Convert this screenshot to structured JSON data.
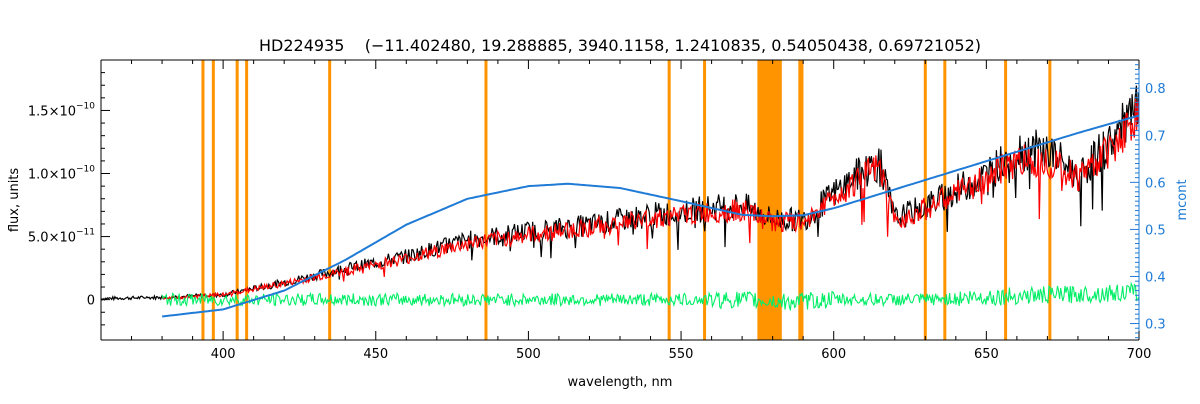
{
  "chart_data": {
    "type": "line",
    "title": "HD224935    (−11.402480, 19.288885, 3940.1158, 1.2410835, 0.54050438, 0.69721052)",
    "xlabel": "wavelength, nm",
    "ylabel": "flux, units",
    "y2label": "mcont",
    "xlim": [
      360,
      700
    ],
    "ylim": [
      -3.2e-11,
      1.9e-10
    ],
    "y2lim": [
      0.265,
      0.86
    ],
    "x_ticks": [
      400,
      450,
      500,
      550,
      600,
      650,
      700
    ],
    "x_tick_labels": [
      "400",
      "450",
      "500",
      "550",
      "600",
      "650",
      "700"
    ],
    "y_ticks": [
      0,
      5e-11,
      1e-10,
      1.5e-10
    ],
    "y_tick_labels": [
      {
        "mant": "0",
        "exp": ""
      },
      {
        "mant": "5.0×10",
        "exp": "−11"
      },
      {
        "mant": "1.0×10",
        "exp": "−10"
      },
      {
        "mant": "1.5×10",
        "exp": "−10"
      }
    ],
    "y2_ticks": [
      0.3,
      0.4,
      0.5,
      0.6,
      0.7,
      0.8
    ],
    "y2_tick_labels": [
      "0.3",
      "0.4",
      "0.5",
      "0.6",
      "0.7",
      "0.8"
    ],
    "masked_lines_nm": [
      393.4,
      396.8,
      404.6,
      407.7,
      434.9,
      486.1,
      546.1,
      557.7,
      588.9,
      589.6,
      630.0,
      636.4,
      656.3,
      670.8
    ],
    "masked_band_nm": [
      575,
      583
    ],
    "series": [
      {
        "key": "observed",
        "color": "#000000",
        "x": [
          360,
          380,
          400,
          420,
          440,
          460,
          480,
          500,
          520,
          540,
          560,
          570,
          580,
          590,
          600,
          610,
          615,
          620,
          630,
          640,
          650,
          660,
          670,
          680,
          690,
          700
        ],
        "y": [
          1e-12,
          2e-12,
          4e-12,
          1.4e-11,
          2.5e-11,
          3.5e-11,
          4.8e-11,
          5.5e-11,
          6e-11,
          6.8e-11,
          7.4e-11,
          7.6e-11,
          6.5e-11,
          6.4e-11,
          8.5e-11,
          1.05e-10,
          1.1e-10,
          6.5e-11,
          7.5e-11,
          8.8e-11,
          1e-10,
          1.2e-10,
          1.2e-10,
          1e-10,
          1.25e-10,
          1.55e-10
        ]
      },
      {
        "key": "model",
        "color": "#ff0000",
        "x": [
          380,
          400,
          420,
          440,
          460,
          480,
          500,
          520,
          540,
          560,
          570,
          580,
          590,
          600,
          610,
          615,
          620,
          630,
          640,
          650,
          660,
          670,
          680,
          690,
          700
        ],
        "y": [
          1e-12,
          4e-12,
          1.3e-11,
          2.3e-11,
          3.3e-11,
          4.5e-11,
          5.2e-11,
          5.8e-11,
          6.5e-11,
          7e-11,
          7.2e-11,
          6.2e-11,
          6.2e-11,
          8.2e-11,
          1e-10,
          1.05e-10,
          6.3e-11,
          7.3e-11,
          8.5e-11,
          9.7e-11,
          1.12e-10,
          1.12e-10,
          9.8e-11,
          1.2e-10,
          1.48e-10
        ]
      },
      {
        "key": "residual",
        "color": "#00ee66",
        "x": [
          380,
          420,
          460,
          500,
          540,
          570,
          585,
          600,
          630,
          660,
          690,
          700
        ],
        "y": [
          0,
          0,
          0,
          0,
          0,
          0,
          -2e-12,
          0,
          0,
          3e-12,
          5e-12,
          6e-12
        ]
      },
      {
        "key": "continuum",
        "axis": "right",
        "color": "#1f7bd6",
        "x": [
          380,
          400,
          420,
          440,
          460,
          480,
          500,
          513,
          530,
          550,
          570,
          580,
          590,
          600,
          620,
          640,
          660,
          680,
          700
        ],
        "y": [
          0.315,
          0.33,
          0.37,
          0.435,
          0.51,
          0.565,
          0.592,
          0.597,
          0.588,
          0.56,
          0.531,
          0.528,
          0.53,
          0.545,
          0.585,
          0.625,
          0.665,
          0.705,
          0.742
        ]
      }
    ]
  }
}
